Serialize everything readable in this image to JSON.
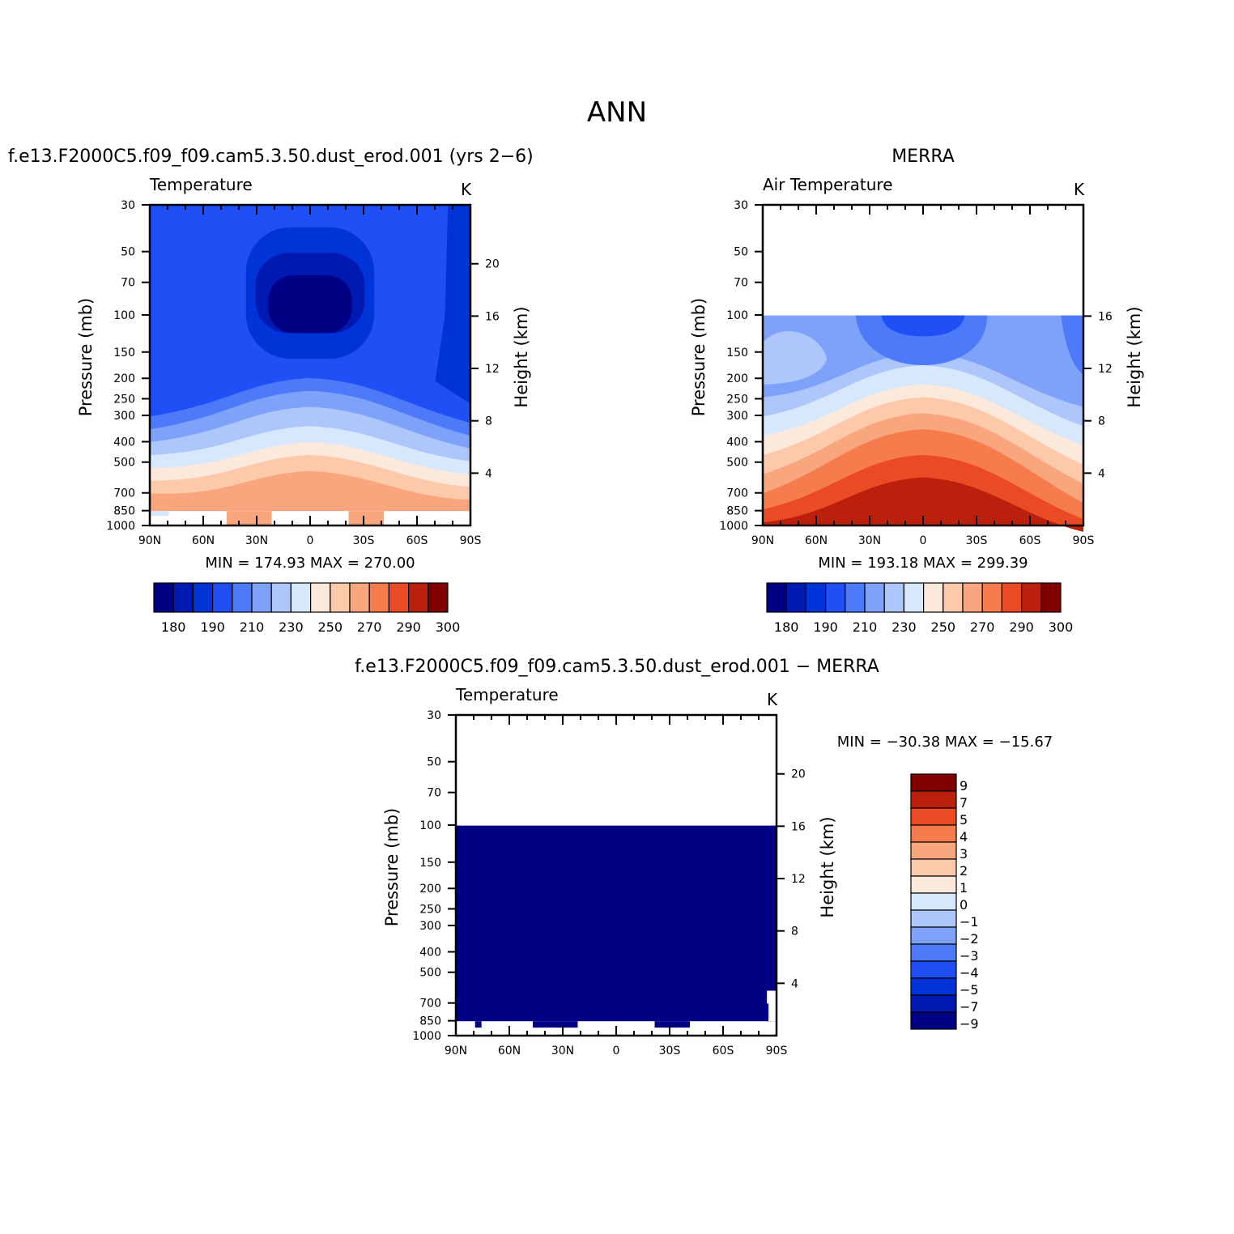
{
  "figure_title": "ANN",
  "colors": {
    "palette": [
      "#000085",
      "#0019b0",
      "#0034d9",
      "#1f4ff5",
      "#4c7af8",
      "#7ea1fa",
      "#adc6fb",
      "#d8e8fc",
      "#fde9dc",
      "#fcc9aa",
      "#f9a57e",
      "#f67c4e",
      "#ea4a24",
      "#ba200c",
      "#800000"
    ]
  },
  "chart_data": [
    {
      "type": "heatmap",
      "title": "f.e13.F2000C5.f09_f09.cam5.3.50.dust_erod.001 (yrs 2−6)",
      "variable": "Temperature",
      "units": "K",
      "xlabel": "",
      "ylabel": "Pressure (mb)",
      "ylabel_right": "Height (km)",
      "x_ticks": [
        "90N",
        "60N",
        "30N",
        "0",
        "30S",
        "60S",
        "90S"
      ],
      "y_ticks": [
        "30",
        "50",
        "70",
        "100",
        "150",
        "200",
        "250",
        "300",
        "400",
        "500",
        "700",
        "850",
        "1000"
      ],
      "y_right_ticks": [
        "20",
        "16",
        "12",
        "8",
        "4"
      ],
      "ylim": [
        1000,
        30
      ],
      "y_scale": "log",
      "stats": "MIN = 174.93   MAX = 270.00",
      "colorbar_labels": [
        "180",
        "190",
        "210",
        "230",
        "250",
        "270",
        "290",
        "300"
      ],
      "colorbar_levels": [
        180,
        185,
        190,
        200,
        210,
        220,
        230,
        240,
        250,
        260,
        270,
        280,
        290,
        300
      ]
    },
    {
      "type": "heatmap",
      "title": "MERRA",
      "variable": "Air Temperature",
      "units": "K",
      "xlabel": "",
      "ylabel": "Pressure (mb)",
      "ylabel_right": "Height (km)",
      "x_ticks": [
        "90N",
        "60N",
        "30N",
        "0",
        "30S",
        "60S",
        "90S"
      ],
      "y_ticks": [
        "30",
        "50",
        "70",
        "100",
        "150",
        "200",
        "250",
        "300",
        "400",
        "500",
        "700",
        "850",
        "1000"
      ],
      "y_right_ticks": [
        "16",
        "12",
        "8",
        "4"
      ],
      "ylim": [
        1000,
        30
      ],
      "y_scale": "log",
      "stats": "MIN = 193.18   MAX = 299.39",
      "colorbar_labels": [
        "180",
        "190",
        "210",
        "230",
        "250",
        "270",
        "290",
        "300"
      ],
      "colorbar_levels": [
        180,
        185,
        190,
        200,
        210,
        220,
        230,
        240,
        250,
        260,
        270,
        280,
        290,
        300
      ]
    },
    {
      "type": "heatmap",
      "title": "f.e13.F2000C5.f09_f09.cam5.3.50.dust_erod.001 − MERRA",
      "variable": "Temperature",
      "units": "K",
      "xlabel": "",
      "ylabel": "Pressure (mb)",
      "ylabel_right": "Height (km)",
      "x_ticks": [
        "90N",
        "60N",
        "30N",
        "0",
        "30S",
        "60S",
        "90S"
      ],
      "y_ticks": [
        "30",
        "50",
        "70",
        "100",
        "150",
        "200",
        "250",
        "300",
        "400",
        "500",
        "700",
        "850",
        "1000"
      ],
      "y_right_ticks": [
        "20",
        "16",
        "12",
        "8",
        "4"
      ],
      "ylim": [
        1000,
        30
      ],
      "y_scale": "log",
      "stats": "MIN = −30.38   MAX = −15.67",
      "colorbar_labels": [
        "9",
        "7",
        "5",
        "4",
        "3",
        "2",
        "1",
        "0",
        "−1",
        "−2",
        "−3",
        "−4",
        "−5",
        "−7",
        "−9"
      ],
      "colorbar_levels": [
        -9,
        -7,
        -5,
        -4,
        -3,
        -2,
        -1,
        0,
        1,
        2,
        3,
        4,
        5,
        7,
        9
      ]
    }
  ]
}
